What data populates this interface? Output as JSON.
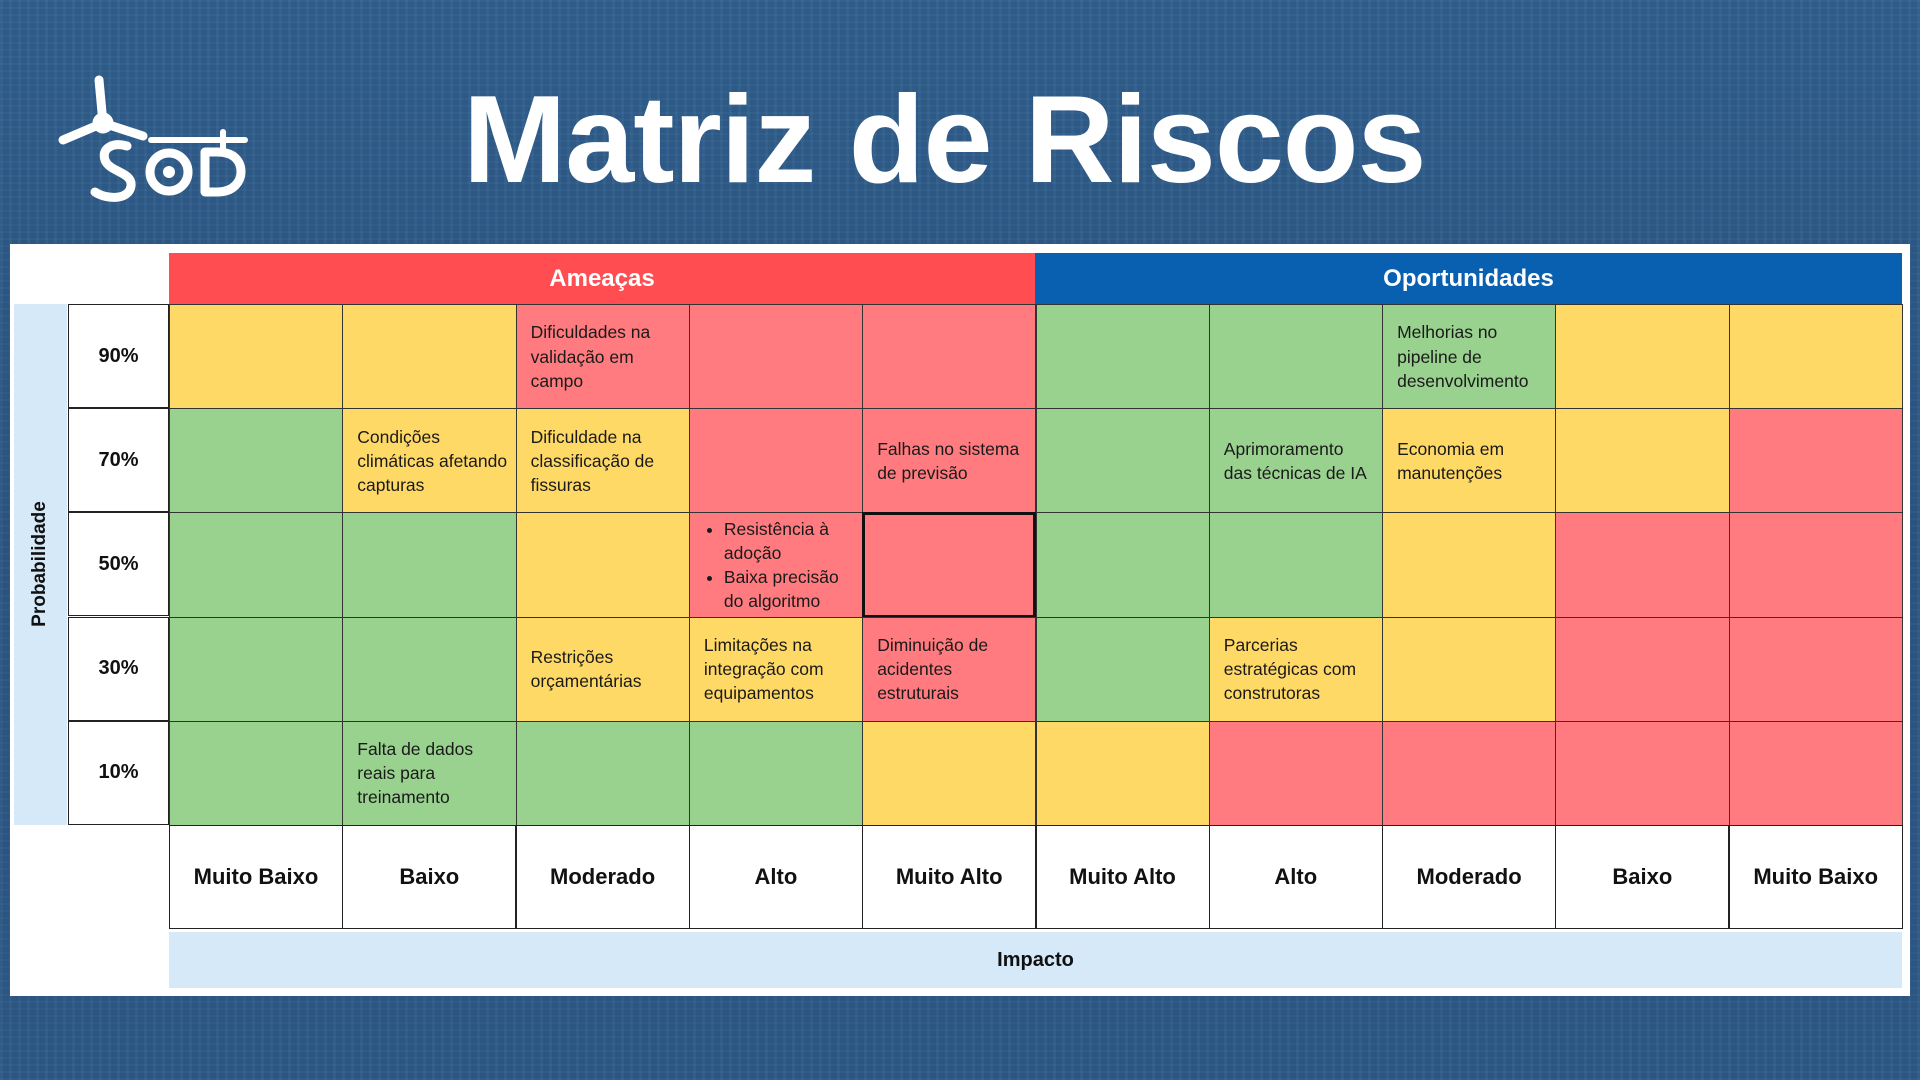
{
  "title": "Matriz de Riscos",
  "logo": {
    "icon": "windmill-sod-logo",
    "text": "SOD"
  },
  "colors": {
    "green": "#99d18f",
    "yellow": "#ffd966",
    "red": "#ff7b7f",
    "threat": "#ff4d52",
    "opportunity": "#0a60b0",
    "axis": "#d6e9f8"
  },
  "matrix": {
    "threats_label": "Ameaças",
    "opportunities_label": "Oportunidades",
    "probability_label": "Probabilidade",
    "impact_label": "Impacto",
    "probabilities": [
      "90%",
      "70%",
      "50%",
      "30%",
      "10%"
    ],
    "impacts": [
      "Muito Baixo",
      "Baixo",
      "Moderado",
      "Alto",
      "Muito Alto",
      "Muito Alto",
      "Alto",
      "Moderado",
      "Baixo",
      "Muito Baixo"
    ],
    "rows": [
      [
        {
          "color": "yellow",
          "text": ""
        },
        {
          "color": "yellow",
          "text": ""
        },
        {
          "color": "red",
          "text": "Dificuldades na validação em campo"
        },
        {
          "color": "red",
          "text": ""
        },
        {
          "color": "red",
          "text": ""
        },
        {
          "color": "green",
          "text": ""
        },
        {
          "color": "green",
          "text": ""
        },
        {
          "color": "green",
          "text": "Melhorias no pipeline de desenvolvimento"
        },
        {
          "color": "yellow",
          "text": ""
        },
        {
          "color": "yellow",
          "text": ""
        }
      ],
      [
        {
          "color": "green",
          "text": ""
        },
        {
          "color": "yellow",
          "text": "Condições climáticas afetando capturas"
        },
        {
          "color": "yellow",
          "text": "Dificuldade na classificação de fissuras"
        },
        {
          "color": "red",
          "text": ""
        },
        {
          "color": "red",
          "text": "Falhas no sistema de previsão"
        },
        {
          "color": "green",
          "text": ""
        },
        {
          "color": "green",
          "text": "Aprimoramento das técnicas de IA"
        },
        {
          "color": "yellow",
          "text": "Economia em manutenções"
        },
        {
          "color": "yellow",
          "text": ""
        },
        {
          "color": "red",
          "text": ""
        }
      ],
      [
        {
          "color": "green",
          "text": ""
        },
        {
          "color": "green",
          "text": ""
        },
        {
          "color": "yellow",
          "text": ""
        },
        {
          "color": "red",
          "items": [
            "Resistência à adoção",
            "Baixa precisão do algoritmo"
          ]
        },
        {
          "color": "red",
          "text": "",
          "highlight": true
        },
        {
          "color": "green",
          "text": ""
        },
        {
          "color": "green",
          "text": ""
        },
        {
          "color": "yellow",
          "text": ""
        },
        {
          "color": "red",
          "text": ""
        },
        {
          "color": "red",
          "text": ""
        }
      ],
      [
        {
          "color": "green",
          "text": ""
        },
        {
          "color": "green",
          "text": ""
        },
        {
          "color": "yellow",
          "text": "Restrições orçamentárias"
        },
        {
          "color": "yellow",
          "text": "Limitações na integração com equipamentos"
        },
        {
          "color": "red",
          "text": "Diminuição de acidentes estruturais"
        },
        {
          "color": "green",
          "text": ""
        },
        {
          "color": "yellow",
          "text": "Parcerias estratégicas com construtoras"
        },
        {
          "color": "yellow",
          "text": ""
        },
        {
          "color": "red",
          "text": ""
        },
        {
          "color": "red",
          "text": ""
        }
      ],
      [
        {
          "color": "green",
          "text": ""
        },
        {
          "color": "green",
          "text": "Falta de dados reais para treinamento"
        },
        {
          "color": "green",
          "text": ""
        },
        {
          "color": "green",
          "text": ""
        },
        {
          "color": "yellow",
          "text": ""
        },
        {
          "color": "yellow",
          "text": ""
        },
        {
          "color": "red",
          "text": ""
        },
        {
          "color": "red",
          "text": ""
        },
        {
          "color": "red",
          "text": ""
        },
        {
          "color": "red",
          "text": ""
        }
      ]
    ]
  }
}
